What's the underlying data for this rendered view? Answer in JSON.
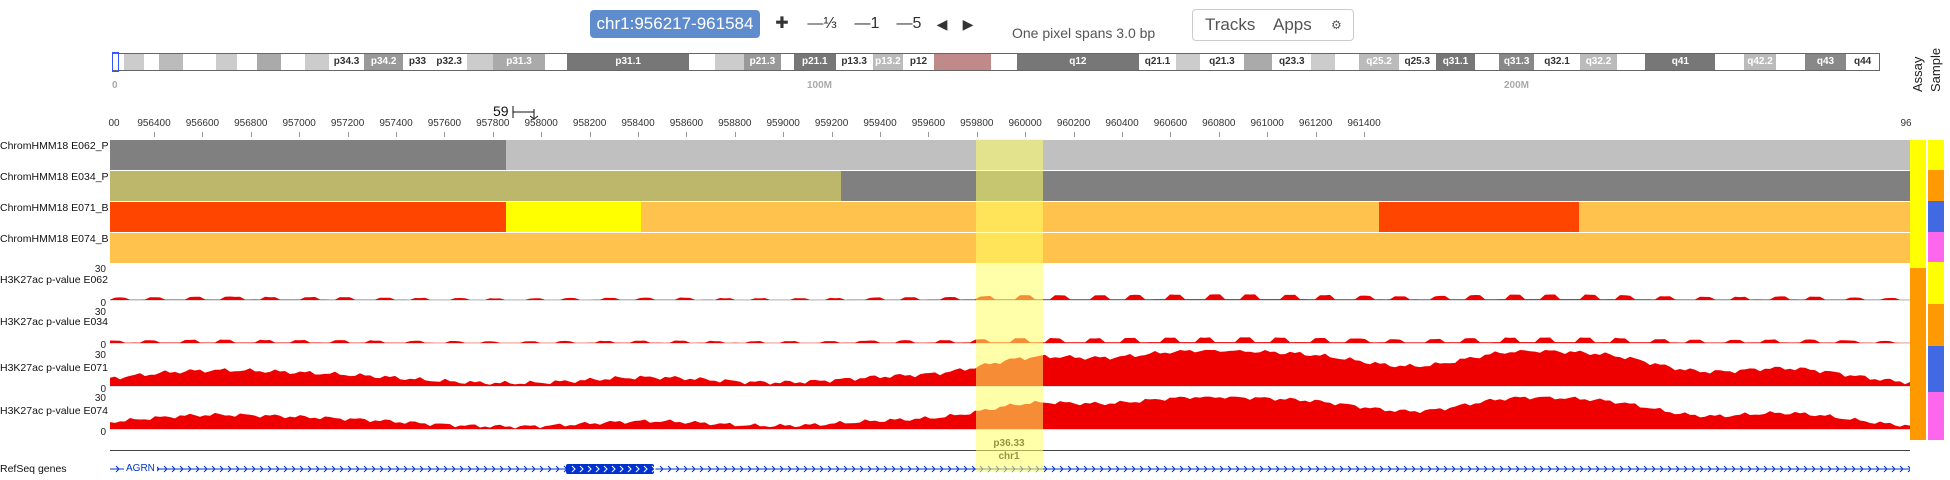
{
  "toolbar": {
    "locus": "chr1:956217-961584",
    "zoom_in": "✚",
    "zoom_out_third": "—⅓",
    "zoom_out_one": "—1",
    "zoom_out_five": "—5",
    "pan_left": "◀",
    "pan_right": "▶",
    "span_text": "One pixel spans 3.0 bp",
    "tracks": "Tracks",
    "apps": "Apps",
    "settings_icon": "⚙"
  },
  "ideogram": {
    "bands": [
      {
        "label": "",
        "color": "#ffffff"
      },
      {
        "label": "",
        "color": "#cccccc"
      },
      {
        "label": "",
        "color": "#ffffff"
      },
      {
        "label": "",
        "color": "#bbbbbb"
      },
      {
        "label": "",
        "color": "#ffffff"
      },
      {
        "label": "",
        "color": "#cccccc"
      },
      {
        "label": "",
        "color": "#ffffff"
      },
      {
        "label": "",
        "color": "#aaaaaa"
      },
      {
        "label": "",
        "color": "#ffffff"
      },
      {
        "label": "",
        "color": "#cccccc"
      },
      {
        "label": "p34.3",
        "color": "#ffffff"
      },
      {
        "label": "p34.2",
        "color": "#999999"
      },
      {
        "label": "p33",
        "color": "#ffffff"
      },
      {
        "label": "p32.3",
        "color": "#ffffff"
      },
      {
        "label": "",
        "color": "#cccccc"
      },
      {
        "label": "p31.3",
        "color": "#aaaaaa"
      },
      {
        "label": "",
        "color": "#ffffff"
      },
      {
        "label": "p31.1",
        "color": "#777777"
      },
      {
        "label": "",
        "color": "#ffffff"
      },
      {
        "label": "",
        "color": "#cccccc"
      },
      {
        "label": "p21.3",
        "color": "#999999"
      },
      {
        "label": "",
        "color": "#ffffff"
      },
      {
        "label": "p21.1",
        "color": "#777777"
      },
      {
        "label": "p13.3",
        "color": "#ffffff"
      },
      {
        "label": "p13.2",
        "color": "#bbbbbb"
      },
      {
        "label": "p12",
        "color": "#ffffff"
      },
      {
        "label": "",
        "color": "#c08a8a"
      },
      {
        "label": "",
        "color": "#ffffff"
      },
      {
        "label": "q12",
        "color": "#777777"
      },
      {
        "label": "q21.1",
        "color": "#ffffff"
      },
      {
        "label": "",
        "color": "#cccccc"
      },
      {
        "label": "q21.3",
        "color": "#ffffff"
      },
      {
        "label": "",
        "color": "#aaaaaa"
      },
      {
        "label": "q23.3",
        "color": "#ffffff"
      },
      {
        "label": "",
        "color": "#cccccc"
      },
      {
        "label": "",
        "color": "#ffffff"
      },
      {
        "label": "q25.2",
        "color": "#bbbbbb"
      },
      {
        "label": "q25.3",
        "color": "#ffffff"
      },
      {
        "label": "q31.1",
        "color": "#777777"
      },
      {
        "label": "",
        "color": "#ffffff"
      },
      {
        "label": "q31.3",
        "color": "#888888"
      },
      {
        "label": "q32.1",
        "color": "#ffffff"
      },
      {
        "label": "q32.2",
        "color": "#bbbbbb"
      },
      {
        "label": "",
        "color": "#ffffff"
      },
      {
        "label": "q41",
        "color": "#777777"
      },
      {
        "label": "",
        "color": "#ffffff"
      },
      {
        "label": "q42.2",
        "color": "#bbbbbb"
      },
      {
        "label": "",
        "color": "#ffffff"
      },
      {
        "label": "q43",
        "color": "#888888"
      },
      {
        "label": "q44",
        "color": "#ffffff"
      }
    ],
    "tick_labels": [
      "0",
      "100M",
      "200M"
    ]
  },
  "scale_bar": {
    "label": "59"
  },
  "ruler": {
    "left_label": "00",
    "labels": [
      "956400",
      "956600",
      "956800",
      "957000",
      "957200",
      "957400",
      "957600",
      "957800",
      "958000",
      "958200",
      "958400",
      "958600",
      "958800",
      "959000",
      "959200",
      "959400",
      "959600",
      "959800",
      "960000",
      "960200",
      "960400",
      "960600",
      "960800",
      "961000",
      "961200",
      "961400"
    ],
    "right_label": "96"
  },
  "legend": {
    "assay": "Assay",
    "sample": "Sample"
  },
  "chromhmm_tracks": [
    {
      "label": "ChromHMM18 E062_P"
    },
    {
      "label": "ChromHMM18 E034_P"
    },
    {
      "label": "ChromHMM18 E071_B"
    },
    {
      "label": "ChromHMM18 E074_B"
    }
  ],
  "signal_tracks": [
    {
      "label": "H3K27ac p-value E062",
      "max": "30",
      "min": "0"
    },
    {
      "label": "H3K27ac p-value E034",
      "max": "30",
      "min": "0"
    },
    {
      "label": "H3K27ac p-value E071",
      "max": "30",
      "min": "0"
    },
    {
      "label": "H3K27ac p-value E074",
      "max": "30",
      "min": "0"
    }
  ],
  "chrom_band": {
    "band": "p36.33",
    "chrom": "chr1"
  },
  "genes": {
    "track_label": "RefSeq genes",
    "gene_name": "AGRN"
  },
  "colors": {
    "locus_bg": "#5f8ccc",
    "signal": "#ee0000",
    "highlight": "#ffff66",
    "state_gray": "#808080",
    "state_lightgray": "#c0c0c0",
    "state_olive": "#bdb76b",
    "state_orange": "#ff4500",
    "state_yellow": "#ffff00",
    "state_lightorange": "#ffc34d",
    "assay_orange": "#ff9900",
    "sample_yellow": "#ffff00",
    "sample_orange": "#ff9900",
    "sample_blue": "#4169e1",
    "sample_pink": "#ff66ee",
    "gene_blue": "#0033cc"
  }
}
